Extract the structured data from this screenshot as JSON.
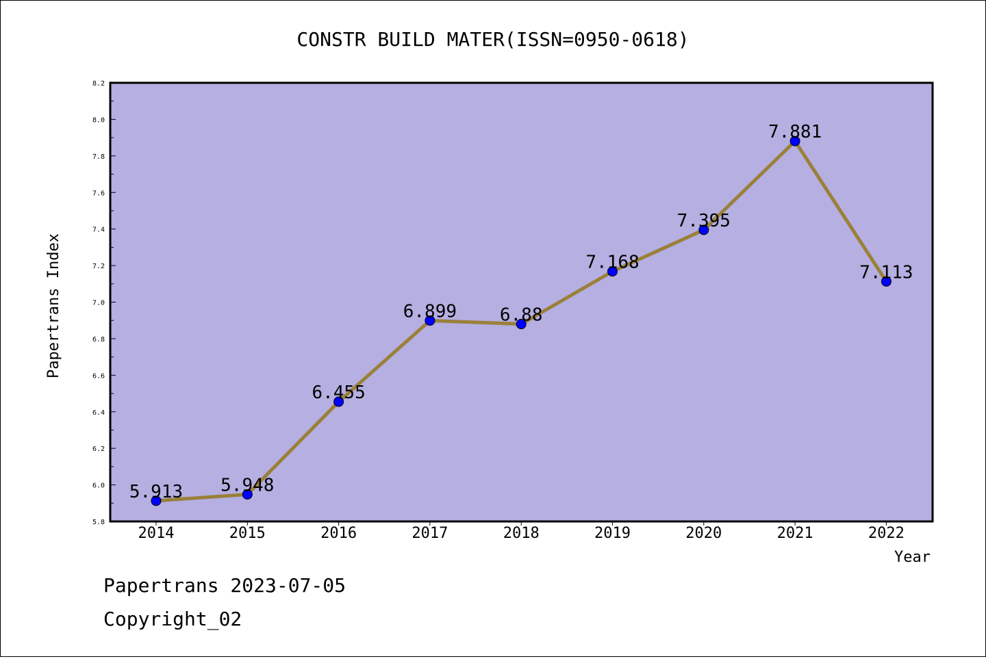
{
  "chart_data": {
    "type": "line",
    "title": "CONSTR BUILD MATER(ISSN=0950-0618)",
    "xlabel": "Year",
    "ylabel": "Papertrans Index",
    "categories": [
      "2014",
      "2015",
      "2016",
      "2017",
      "2018",
      "2019",
      "2020",
      "2021",
      "2022"
    ],
    "values": [
      5.913,
      5.948,
      6.455,
      6.899,
      6.88,
      7.168,
      7.395,
      7.881,
      7.113
    ],
    "data_labels": [
      "5.913",
      "5.948",
      "6.455",
      "6.899",
      "6.88",
      "7.168",
      "7.395",
      "7.881",
      "7.113"
    ],
    "ylim": [
      5.8,
      8.2
    ],
    "yticks": [
      "5.8",
      "6.0",
      "6.2",
      "6.4",
      "6.6",
      "6.8",
      "7.0",
      "7.2",
      "7.4",
      "7.6",
      "7.8",
      "8.0",
      "8.2"
    ],
    "grid": false,
    "colors": {
      "plot_background": "#b5afe2",
      "line": "#9a8039",
      "marker": "#0000ff"
    }
  },
  "footer": {
    "line1": "Papertrans 2023-07-05",
    "line2": "Copyright_02"
  }
}
